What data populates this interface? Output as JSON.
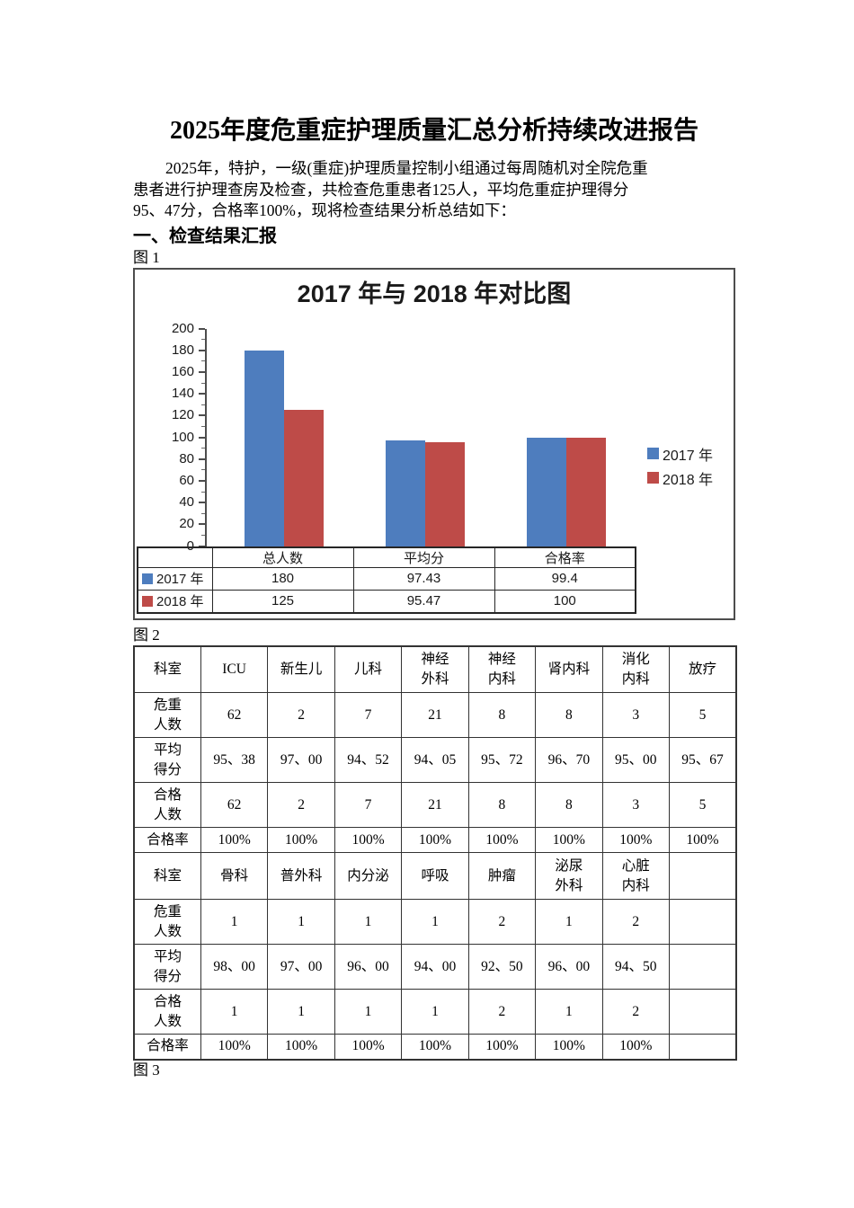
{
  "doc": {
    "title": "2025年度危重症护理质量汇总分析持续改进报告",
    "paragraph_lines": [
      "2025年，特护，一级(重症)护理质量控制小组通过每周随机对全院危重",
      "患者进行护理查房及检查，共检查危重患者125人，平均危重症护理得分",
      "95、47分，合格率100%，现将检查结果分析总结如下："
    ],
    "section_heading": "一、检查结果汇报",
    "figure_labels": [
      "图 1",
      "图 2",
      "图 3"
    ]
  },
  "chart_data": {
    "type": "bar",
    "title": "2017 年与 2018 年对比图",
    "categories": [
      "总人数",
      "平均分",
      "合格率"
    ],
    "series": [
      {
        "name": "2017 年",
        "color": "#4E7DBE",
        "values": [
          180,
          97.43,
          99.4
        ]
      },
      {
        "name": "2018 年",
        "color": "#BE4B48",
        "values": [
          125,
          95.47,
          100
        ]
      }
    ],
    "ylim": [
      0,
      200
    ],
    "ytick_step": 20,
    "ytick_minor_step": 10,
    "grid": false,
    "legend_position": "right",
    "data_table_shown": true
  },
  "table": {
    "sections": [
      {
        "corner_label": "科室",
        "columns": [
          "ICU",
          "新生儿",
          "儿科",
          "神经\n外科",
          "神经\n内科",
          "肾内科",
          "消化\n内科",
          "放疗"
        ],
        "rows": [
          {
            "label": "危重\n人数",
            "values": [
              "62",
              "2",
              "7",
              "21",
              "8",
              "8",
              "3",
              "5"
            ]
          },
          {
            "label": "平均\n得分",
            "values": [
              "95、38",
              "97、00",
              "94、52",
              "94、05",
              "95、72",
              "96、70",
              "95、00",
              "95、67"
            ]
          },
          {
            "label": "合格\n人数",
            "values": [
              "62",
              "2",
              "7",
              "21",
              "8",
              "8",
              "3",
              "5"
            ]
          },
          {
            "label": "合格率",
            "values": [
              "100%",
              "100%",
              "100%",
              "100%",
              "100%",
              "100%",
              "100%",
              "100%"
            ]
          }
        ]
      },
      {
        "corner_label": "科室",
        "columns": [
          "骨科",
          "普外科",
          "内分泌",
          "呼吸",
          "肿瘤",
          "泌尿\n外科",
          "心脏\n内科",
          ""
        ],
        "rows": [
          {
            "label": "危重\n人数",
            "values": [
              "1",
              "1",
              "1",
              "1",
              "2",
              "1",
              "2",
              ""
            ]
          },
          {
            "label": "平均\n得分",
            "values": [
              "98、00",
              "97、00",
              "96、00",
              "94、00",
              "92、50",
              "96、00",
              "94、50",
              ""
            ]
          },
          {
            "label": "合格\n人数",
            "values": [
              "1",
              "1",
              "1",
              "1",
              "2",
              "1",
              "2",
              ""
            ]
          },
          {
            "label": "合格率",
            "values": [
              "100%",
              "100%",
              "100%",
              "100%",
              "100%",
              "100%",
              "100%",
              ""
            ]
          }
        ]
      }
    ]
  }
}
